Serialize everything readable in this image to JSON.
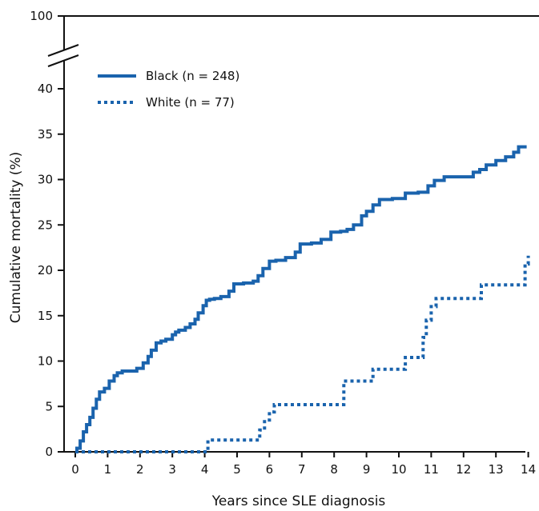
{
  "chart_data": {
    "type": "line",
    "xlabel": "Years since SLE diagnosis",
    "ylabel": "Cumulative  mortality (%)",
    "xlim": [
      0,
      14
    ],
    "ylim": [
      0,
      40
    ],
    "axis_break": true,
    "x_ticks": [
      0,
      1,
      2,
      3,
      4,
      5,
      6,
      7,
      8,
      9,
      10,
      11,
      12,
      13,
      14
    ],
    "y_ticks": [
      0,
      5,
      10,
      15,
      20,
      25,
      30,
      35,
      40
    ],
    "y_top_tick": 100,
    "grid": false,
    "legend_position": "top-left",
    "series_color": "#1a63ad",
    "series": [
      {
        "name": "Black (n = 248)",
        "style": "solid",
        "x": [
          0.0,
          0.05,
          0.15,
          0.25,
          0.35,
          0.45,
          0.55,
          0.65,
          0.75,
          0.9,
          1.05,
          1.2,
          1.3,
          1.45,
          1.6,
          1.9,
          2.1,
          2.25,
          2.35,
          2.5,
          2.65,
          2.8,
          3.0,
          3.1,
          3.2,
          3.4,
          3.55,
          3.7,
          3.8,
          3.95,
          4.05,
          4.15,
          4.3,
          4.5,
          4.75,
          4.9,
          5.2,
          5.5,
          5.65,
          5.8,
          6.0,
          6.2,
          6.5,
          6.8,
          6.95,
          7.3,
          7.6,
          7.9,
          8.2,
          8.4,
          8.6,
          8.85,
          9.0,
          9.2,
          9.4,
          9.8,
          10.2,
          10.6,
          10.9,
          11.1,
          11.4,
          11.6,
          12.0,
          12.3,
          12.5,
          12.7,
          13.0,
          13.3,
          13.55,
          13.7,
          13.95
        ],
        "y": [
          0.2,
          0.4,
          1.2,
          2.2,
          3.0,
          3.8,
          4.8,
          5.8,
          6.6,
          7.0,
          7.8,
          8.4,
          8.7,
          8.9,
          8.9,
          9.2,
          9.8,
          10.5,
          11.2,
          12.0,
          12.2,
          12.4,
          12.9,
          13.2,
          13.4,
          13.7,
          14.1,
          14.6,
          15.3,
          16.1,
          16.7,
          16.8,
          16.9,
          17.1,
          17.7,
          18.5,
          18.6,
          18.8,
          19.4,
          20.2,
          21.0,
          21.1,
          21.4,
          22.0,
          22.9,
          23.0,
          23.4,
          24.2,
          24.3,
          24.5,
          25.0,
          26.0,
          26.5,
          27.2,
          27.8,
          27.9,
          28.5,
          28.6,
          29.3,
          29.9,
          30.3,
          30.3,
          30.3,
          30.8,
          31.1,
          31.6,
          32.1,
          32.5,
          33.0,
          33.6,
          33.6
        ]
      },
      {
        "name": "White (n = 77)",
        "style": "dotted",
        "x": [
          0.0,
          4.0,
          4.1,
          5.6,
          5.7,
          5.85,
          6.0,
          6.15,
          8.2,
          8.3,
          9.0,
          9.2,
          10.0,
          10.2,
          10.6,
          10.75,
          10.85,
          11.0,
          11.15,
          12.45,
          12.55,
          13.85,
          13.9,
          14.0
        ],
        "y": [
          0.0,
          0.0,
          1.3,
          1.3,
          2.4,
          3.5,
          4.4,
          5.2,
          5.2,
          7.8,
          7.8,
          9.1,
          9.1,
          10.4,
          10.4,
          12.6,
          14.5,
          16.0,
          16.9,
          16.9,
          18.4,
          18.4,
          20.7,
          21.6
        ]
      }
    ]
  }
}
